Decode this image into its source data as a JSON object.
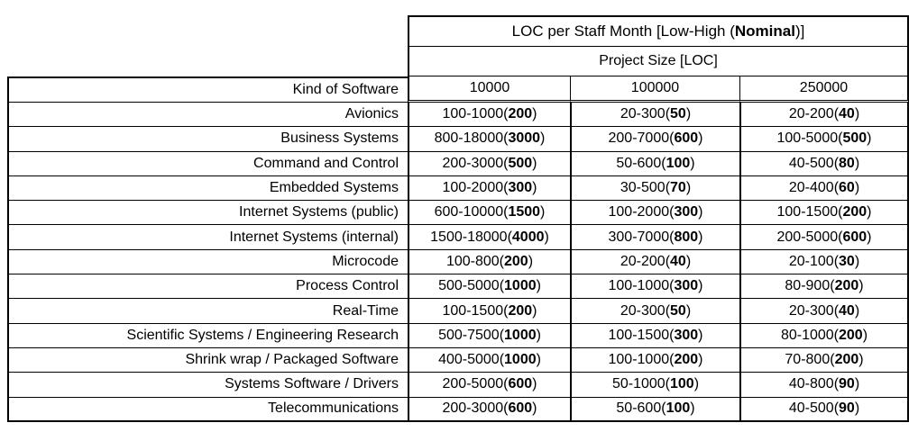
{
  "table": {
    "title": {
      "prefix": "LOC per Staff Month [Low-High (",
      "bold": "Nominal",
      "suffix": ")]"
    },
    "subtitle": "Project Size [LOC]",
    "row_header_label": "Kind of Software",
    "size_columns": [
      "10000",
      "100000",
      "250000"
    ],
    "cell_format": {
      "open": "(",
      "close": ")"
    },
    "rows": [
      {
        "label": "Avionics",
        "cells": [
          {
            "range": "100-1000",
            "nominal": "200"
          },
          {
            "range": "20-300",
            "nominal": "50"
          },
          {
            "range": "20-200",
            "nominal": "40"
          }
        ]
      },
      {
        "label": "Business Systems",
        "cells": [
          {
            "range": "800-18000",
            "nominal": "3000"
          },
          {
            "range": "200-7000",
            "nominal": "600"
          },
          {
            "range": "100-5000",
            "nominal": "500"
          }
        ]
      },
      {
        "label": "Command and Control",
        "cells": [
          {
            "range": "200-3000",
            "nominal": "500"
          },
          {
            "range": "50-600",
            "nominal": "100"
          },
          {
            "range": "40-500",
            "nominal": "80"
          }
        ]
      },
      {
        "label": "Embedded Systems",
        "cells": [
          {
            "range": "100-2000",
            "nominal": "300"
          },
          {
            "range": "30-500",
            "nominal": "70"
          },
          {
            "range": "20-400",
            "nominal": "60"
          }
        ]
      },
      {
        "label": "Internet Systems (public)",
        "cells": [
          {
            "range": "600-10000",
            "nominal": "1500"
          },
          {
            "range": "100-2000",
            "nominal": "300"
          },
          {
            "range": "100-1500",
            "nominal": "200"
          }
        ]
      },
      {
        "label": "Internet Systems (internal)",
        "cells": [
          {
            "range": "1500-18000",
            "nominal": "4000"
          },
          {
            "range": "300-7000",
            "nominal": "800"
          },
          {
            "range": "200-5000",
            "nominal": "600"
          }
        ]
      },
      {
        "label": "Microcode",
        "cells": [
          {
            "range": "100-800",
            "nominal": "200"
          },
          {
            "range": "20-200",
            "nominal": "40"
          },
          {
            "range": "20-100",
            "nominal": "30"
          }
        ]
      },
      {
        "label": "Process Control",
        "cells": [
          {
            "range": "500-5000",
            "nominal": "1000"
          },
          {
            "range": "100-1000",
            "nominal": "300"
          },
          {
            "range": "80-900",
            "nominal": "200"
          }
        ]
      },
      {
        "label": "Real-Time",
        "cells": [
          {
            "range": "100-1500",
            "nominal": "200"
          },
          {
            "range": "20-300",
            "nominal": "50"
          },
          {
            "range": "20-300",
            "nominal": "40"
          }
        ]
      },
      {
        "label": "Scientific Systems / Engineering Research",
        "cells": [
          {
            "range": "500-7500",
            "nominal": "1000"
          },
          {
            "range": "100-1500",
            "nominal": "300"
          },
          {
            "range": "80-1000",
            "nominal": "200"
          }
        ]
      },
      {
        "label": "Shrink wrap / Packaged Software",
        "cells": [
          {
            "range": "400-5000",
            "nominal": "1000"
          },
          {
            "range": "100-1000",
            "nominal": "200"
          },
          {
            "range": "70-800",
            "nominal": "200"
          }
        ]
      },
      {
        "label": "Systems Software / Drivers",
        "cells": [
          {
            "range": "200-5000",
            "nominal": "600"
          },
          {
            "range": "50-1000",
            "nominal": "100"
          },
          {
            "range": "40-800",
            "nominal": "90"
          }
        ]
      },
      {
        "label": "Telecommunications",
        "cells": [
          {
            "range": "200-3000",
            "nominal": "600"
          },
          {
            "range": "50-600",
            "nominal": "100"
          },
          {
            "range": "40-500",
            "nominal": "90"
          }
        ]
      }
    ]
  },
  "colors": {
    "border": "#000000",
    "text": "#000000",
    "background": "#ffffff"
  }
}
